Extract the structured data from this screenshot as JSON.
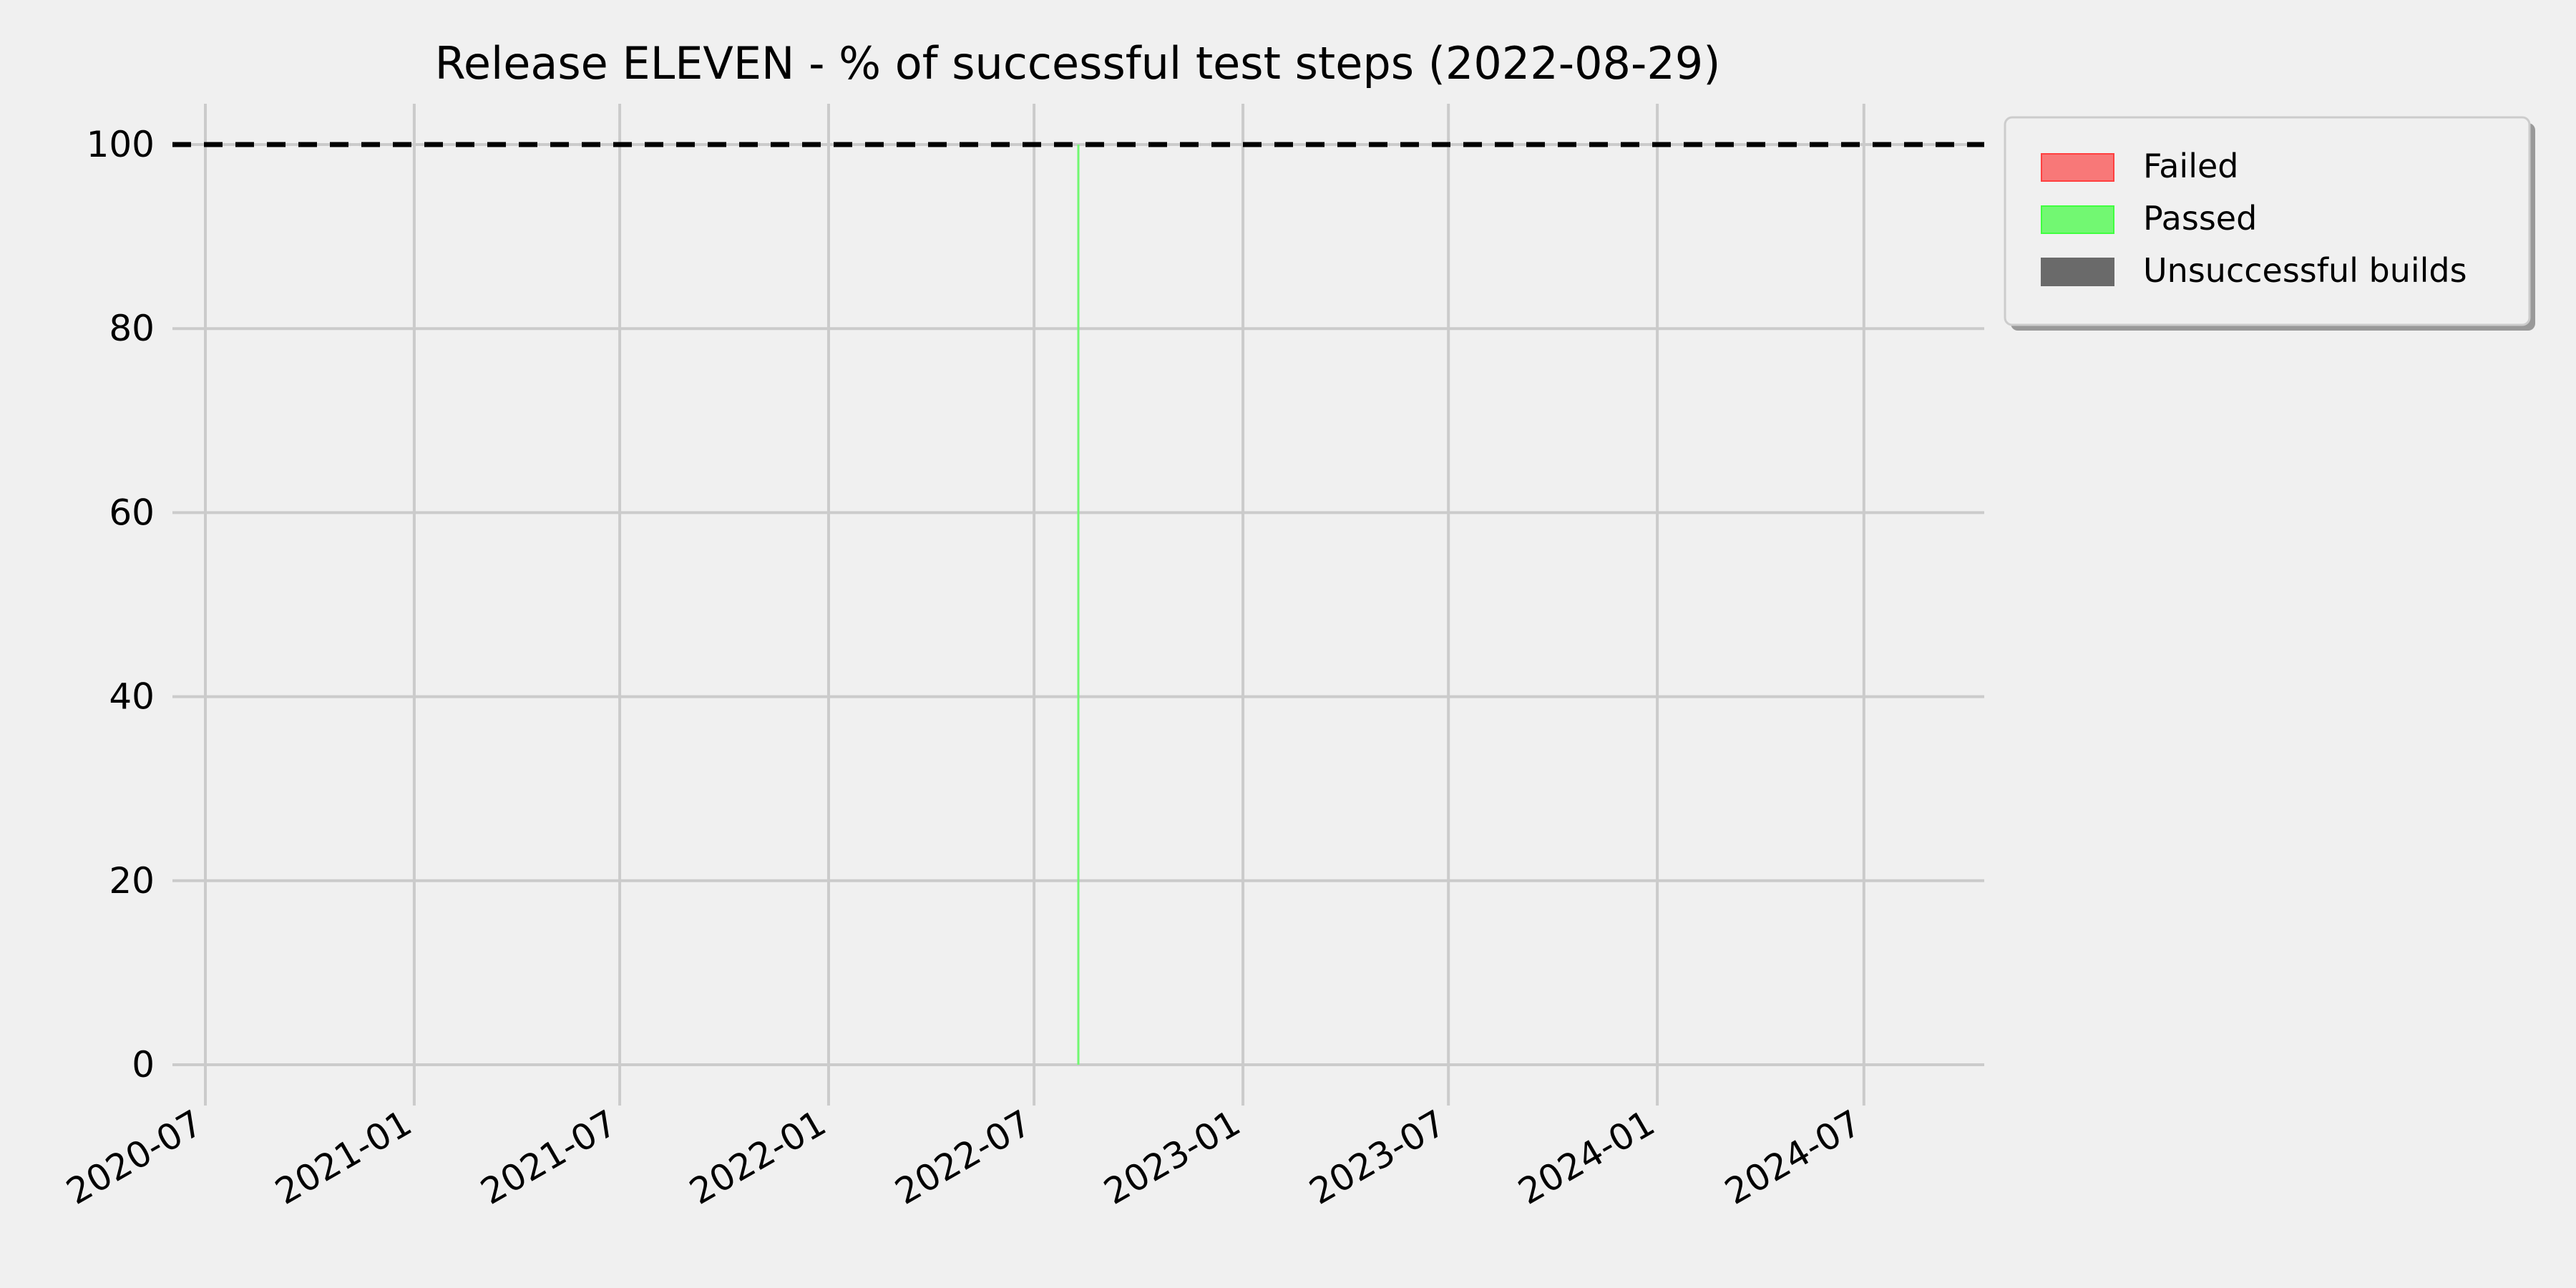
{
  "chart_data": {
    "type": "area",
    "title": "Release ELEVEN - % of successful test steps (2022-08-29)",
    "xlabel": "",
    "ylabel": "",
    "xlim": [
      "2020-06-02",
      "2024-10-15"
    ],
    "ylim": [
      0,
      100
    ],
    "grid": true,
    "legend_placement": "outside-top-right",
    "x_ticks": [
      "2020-07",
      "2021-01",
      "2021-07",
      "2022-01",
      "2022-07",
      "2023-01",
      "2023-07",
      "2024-01",
      "2024-07"
    ],
    "y_ticks": [
      "0",
      "20",
      "40",
      "60",
      "80",
      "100"
    ],
    "reference_line": {
      "y": 100,
      "style": "dashed",
      "color": "#000000"
    },
    "series": [
      {
        "name": "Failed",
        "color": "#f87878",
        "edge": "#ff4040",
        "points": [
          {
            "x": "2022-08-09",
            "y": 0
          }
        ]
      },
      {
        "name": "Passed",
        "color": "#72f872",
        "edge": "#40ff40",
        "points": [
          {
            "x": "2022-08-09",
            "y": 100
          }
        ]
      },
      {
        "name": "Unsuccessful builds",
        "color": "#6a6a6a",
        "edge": "#6a6a6a",
        "points": [
          {
            "x": "2022-08-09",
            "y": 0
          }
        ]
      }
    ]
  }
}
